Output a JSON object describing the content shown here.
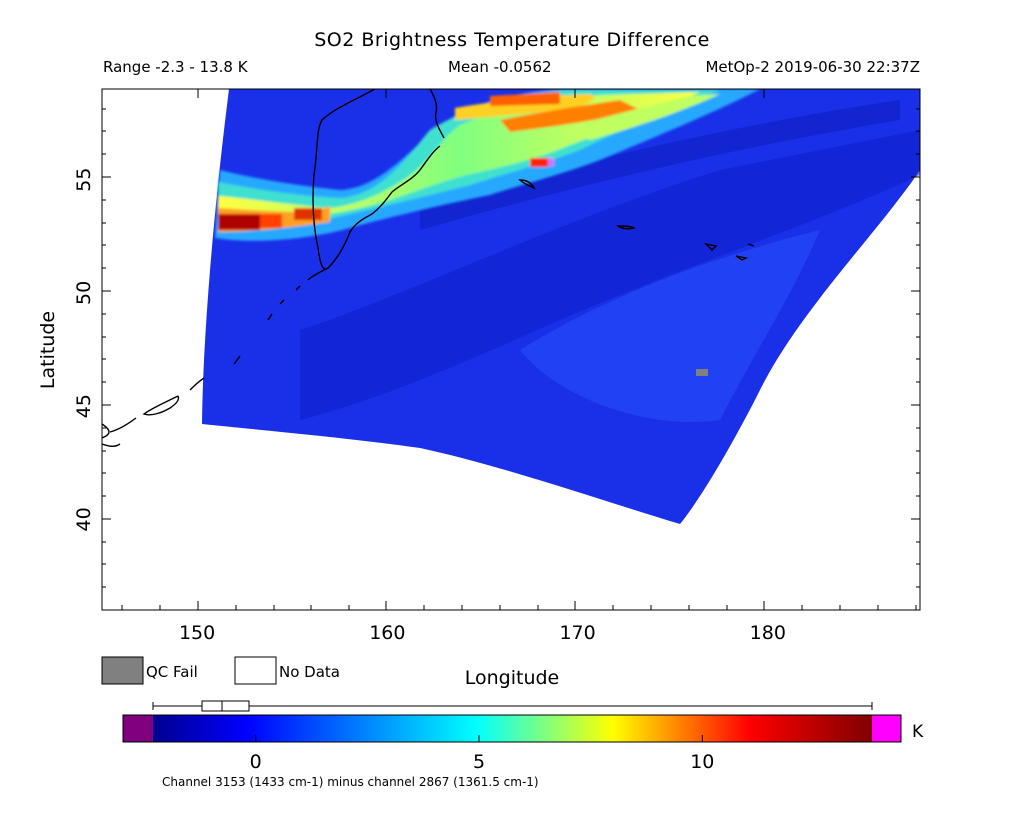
{
  "title": "SO2 Brightness Temperature Difference",
  "range_text": "Range -2.3 - 13.8 K",
  "mean_text": "Mean -0.0562",
  "satellite_time": "MetOp-2 2019-06-30 22:37Z",
  "xlabel": "Longitude",
  "ylabel": "Latitude",
  "legend": {
    "qc_fail": "QC Fail",
    "no_data": "No Data",
    "qc_fail_color": "#808080",
    "no_data_color": "#ffffff"
  },
  "colorbar": {
    "unit": "K",
    "tick_labels": [
      "0",
      "5",
      "10"
    ],
    "tick_values": [
      0,
      5,
      10
    ],
    "min": -2.3,
    "max": 13.8,
    "under_color": "#800080",
    "over_color": "#ff00ff",
    "colors": [
      "#00008f",
      "#0000ff",
      "#00ffff",
      "#ffff00",
      "#ff0000",
      "#800000"
    ],
    "boxplot": {
      "min": -2.3,
      "q1": -1.2,
      "median": -0.8,
      "q3": -0.2,
      "max": 13.8
    }
  },
  "footer": "Channel 3153 (1433 cm-1) minus channel 2867 (1361.5 cm-1)",
  "chart_data": {
    "type": "heatmap",
    "title": "SO2 Brightness Temperature Difference",
    "xlabel": "Longitude",
    "ylabel": "Latitude",
    "xlim": [
      145,
      188
    ],
    "ylim": [
      36,
      59
    ],
    "x_ticks": [
      150,
      160,
      170,
      180
    ],
    "y_ticks": [
      40,
      45,
      50,
      55
    ],
    "units": "K",
    "value_range": [
      -2.3,
      13.8
    ],
    "mean": -0.0562,
    "swath_corners": {
      "top_left": [
        151.5,
        59
      ],
      "top_right": [
        188,
        59
      ],
      "east_edge_at_55": [
        188,
        55.3
      ],
      "bottom_right": [
        175.7,
        39.9
      ],
      "bottom_left": [
        150.3,
        44.2
      ]
    },
    "plume_band": [
      {
        "lon": 151.5,
        "lat": 52.9,
        "value": 13.5
      },
      {
        "lon": 153.5,
        "lat": 53.0,
        "value": 11.0
      },
      {
        "lon": 156.0,
        "lat": 53.3,
        "value": 10.5
      },
      {
        "lon": 160.0,
        "lat": 54.5,
        "value": 6.0
      },
      {
        "lon": 164.0,
        "lat": 56.0,
        "value": 7.5
      },
      {
        "lon": 166.5,
        "lat": 58.2,
        "value": 11.0
      },
      {
        "lon": 168.0,
        "lat": 55.7,
        "value": 12.0
      },
      {
        "lon": 169.0,
        "lat": 57.5,
        "value": 10.0
      },
      {
        "lon": 172.0,
        "lat": 57.0,
        "value": 6.0
      }
    ],
    "qc_fail_pixels": [
      {
        "lon": 176.9,
        "lat": 46.3
      }
    ],
    "background_value": -0.5,
    "grid": false
  }
}
